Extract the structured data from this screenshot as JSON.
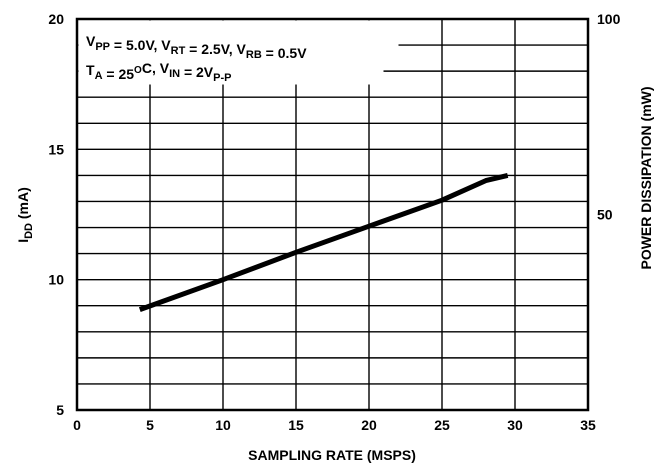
{
  "chart_data": {
    "type": "line",
    "xlabel": "SAMPLING RATE (MSPS)",
    "ylabel": {
      "main": "I",
      "sub": "DD",
      "rest": " (mA)"
    },
    "y2label": "POWER DISSIPATION (mW)",
    "xlim": [
      0,
      35
    ],
    "ylim": [
      5,
      20
    ],
    "y2lim": [
      0,
      100
    ],
    "x_ticks": [
      0,
      5,
      10,
      15,
      20,
      25,
      30,
      35
    ],
    "y_ticks": [
      5,
      10,
      15,
      20
    ],
    "y2_ticks": [
      50,
      100
    ],
    "grid": true,
    "annotation": {
      "line1": [
        {
          "t": "V",
          "sub": "PP"
        },
        {
          "t": " = 5.0V, V",
          "sub": "RT"
        },
        {
          "t": " = 2.5V, V",
          "sub": "RB"
        },
        {
          "t": " = 0.5V"
        }
      ],
      "line2": [
        {
          "t": "T",
          "sub": "A"
        },
        {
          "t": " = 25",
          "sup": "O"
        },
        {
          "t": "C, V",
          "sub": "IN"
        },
        {
          "t": " = 2V",
          "sub": "P-P"
        }
      ]
    },
    "series": [
      {
        "x": [
          4.3,
          10,
          15,
          20,
          25,
          28,
          29.5
        ],
        "y": [
          8.85,
          10.0,
          11.05,
          12.05,
          13.05,
          13.8,
          14.0
        ]
      }
    ]
  }
}
